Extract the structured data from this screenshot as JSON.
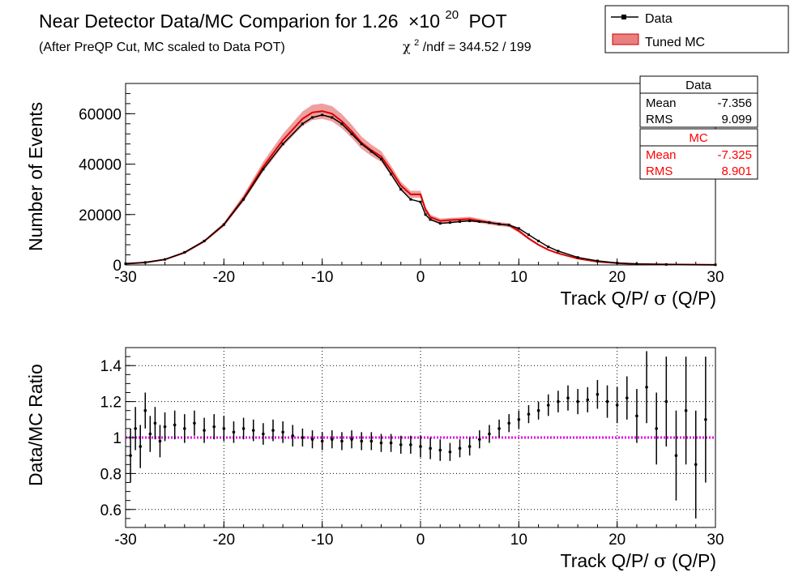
{
  "header": {
    "title": "Near Detector Data/MC Comparion for 1.26",
    "title_times": "×10",
    "title_exp": "20",
    "title_unit": "POT",
    "subtitle": "(After PreQP Cut, MC scaled to Data POT)",
    "chi2_symbol": "χ",
    "chi2_exp": "2",
    "chi2_text": "/ndf = 344.52 / 199"
  },
  "legend": {
    "placement": "top-right",
    "data_label": "Data",
    "mc_label": "Tuned MC"
  },
  "stats": {
    "data": {
      "title": "Data",
      "mean_label": "Mean",
      "mean_value": "-7.356",
      "rms_label": "RMS",
      "rms_value": "9.099"
    },
    "mc": {
      "title": "MC",
      "mean_label": "Mean",
      "mean_value": "-7.325",
      "rms_label": "RMS",
      "rms_value": "8.901"
    }
  },
  "colors": {
    "data": "#000000",
    "mc": "#dd0000",
    "mc_band": "#e88080",
    "unity_line": "#e600e6"
  },
  "chart_data": [
    {
      "type": "line",
      "xlabel_main": "Track Q/P/",
      "xlabel_sigma": "σ",
      "xlabel_tail": "(Q/P)",
      "ylabel": "Number of Events",
      "xlim": [
        -30,
        30
      ],
      "ylim": [
        0,
        72000
      ],
      "xticks": [
        -30,
        -20,
        -10,
        0,
        10,
        20,
        30
      ],
      "yticks": [
        0,
        20000,
        40000,
        60000
      ],
      "grid": false,
      "x": [
        -30,
        -28,
        -26,
        -24,
        -22,
        -20,
        -18,
        -16,
        -14,
        -12,
        -11,
        -10,
        -9,
        -8,
        -7,
        -6,
        -5,
        -4,
        -3,
        -2,
        -1,
        0,
        0.5,
        1,
        2,
        3,
        4,
        5,
        6,
        7,
        8,
        9,
        10,
        11,
        12,
        13,
        14,
        16,
        18,
        20,
        22,
        25,
        30
      ],
      "series": [
        {
          "name": "Data",
          "values": [
            500,
            1000,
            2200,
            5000,
            9500,
            16000,
            26000,
            38000,
            48000,
            56000,
            58500,
            59500,
            58500,
            56000,
            52000,
            48000,
            45000,
            42000,
            36000,
            30000,
            26000,
            25000,
            20000,
            18000,
            16500,
            16800,
            17200,
            17500,
            17200,
            16800,
            16200,
            15800,
            14500,
            12000,
            9500,
            7200,
            5500,
            3000,
            1600,
            800,
            400,
            200,
            50
          ]
        },
        {
          "name": "Tuned MC",
          "values": [
            480,
            980,
            2150,
            4900,
            9400,
            16000,
            26500,
            39000,
            49500,
            58000,
            60500,
            61000,
            60000,
            57000,
            53000,
            48500,
            45500,
            43000,
            37500,
            31500,
            28000,
            28000,
            22000,
            19000,
            17500,
            17800,
            18000,
            18200,
            17500,
            16800,
            16200,
            15800,
            13500,
            10500,
            8000,
            6000,
            4600,
            2500,
            1300,
            700,
            350,
            180,
            40
          ]
        }
      ]
    },
    {
      "type": "scatter",
      "xlabel_main": "Track Q/P/",
      "xlabel_sigma": "σ",
      "xlabel_tail": "(Q/P)",
      "ylabel": "Data/MC Ratio",
      "xlim": [
        -30,
        30
      ],
      "ylim": [
        0.5,
        1.5
      ],
      "xticks": [
        -30,
        -20,
        -10,
        0,
        10,
        20,
        30
      ],
      "yticks": [
        0.6,
        0.8,
        1,
        1.2,
        1.4
      ],
      "grid": true,
      "reference_line": 1,
      "x": [
        -29.5,
        -29,
        -28.5,
        -28,
        -27.5,
        -27,
        -26.5,
        -26,
        -25,
        -24,
        -23,
        -22,
        -21,
        -20,
        -19,
        -18,
        -17,
        -16,
        -15,
        -14,
        -13,
        -12,
        -11,
        -10,
        -9,
        -8,
        -7,
        -6,
        -5,
        -4,
        -3,
        -2,
        -1,
        0,
        1,
        2,
        3,
        4,
        5,
        6,
        7,
        8,
        9,
        10,
        11,
        12,
        13,
        14,
        15,
        16,
        17,
        18,
        19,
        20,
        21,
        22,
        23,
        24,
        25,
        26,
        27,
        28,
        29
      ],
      "values": [
        0.9,
        1.05,
        0.95,
        1.15,
        1.02,
        1.08,
        0.98,
        1.06,
        1.07,
        1.05,
        1.08,
        1.04,
        1.06,
        1.05,
        1.03,
        1.05,
        1.04,
        1.02,
        1.04,
        1.03,
        1.01,
        1.0,
        0.99,
        0.98,
        0.99,
        0.98,
        0.99,
        0.98,
        0.98,
        0.97,
        0.97,
        0.96,
        0.96,
        0.95,
        0.94,
        0.93,
        0.92,
        0.94,
        0.95,
        0.99,
        1.02,
        1.05,
        1.08,
        1.1,
        1.13,
        1.15,
        1.18,
        1.2,
        1.22,
        1.2,
        1.21,
        1.24,
        1.2,
        1.18,
        1.22,
        1.12,
        1.28,
        1.05,
        1.2,
        0.9,
        1.15,
        0.85,
        1.1
      ],
      "errors": [
        0.15,
        0.12,
        0.12,
        0.1,
        0.1,
        0.09,
        0.09,
        0.08,
        0.08,
        0.08,
        0.07,
        0.07,
        0.07,
        0.07,
        0.06,
        0.06,
        0.06,
        0.06,
        0.06,
        0.06,
        0.06,
        0.05,
        0.05,
        0.05,
        0.05,
        0.05,
        0.05,
        0.05,
        0.05,
        0.05,
        0.05,
        0.05,
        0.05,
        0.06,
        0.06,
        0.06,
        0.05,
        0.05,
        0.05,
        0.05,
        0.05,
        0.05,
        0.05,
        0.05,
        0.05,
        0.05,
        0.06,
        0.06,
        0.07,
        0.07,
        0.07,
        0.08,
        0.09,
        0.1,
        0.12,
        0.15,
        0.2,
        0.2,
        0.25,
        0.25,
        0.3,
        0.3,
        0.35
      ]
    }
  ]
}
